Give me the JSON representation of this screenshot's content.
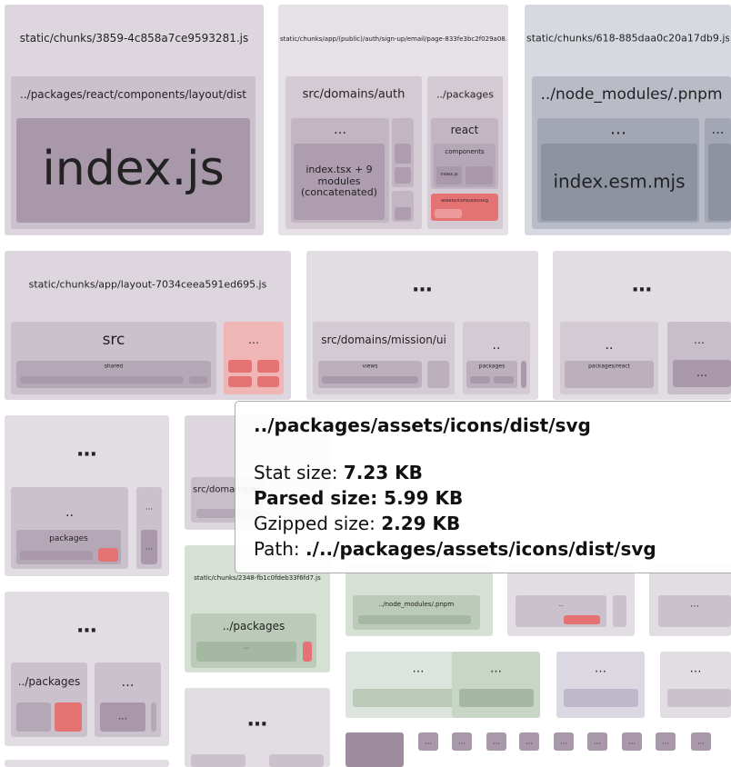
{
  "treemap": {
    "labels": [
      "static/chunks/3859-4c858a7ce9593281.js",
      "../packages/react/components/layout/dist",
      "index.js",
      "static/chunks/app/(public)/auth/sign-up/email/page-833fe3bc2f029a08.js",
      "src/domains/auth",
      "…",
      "index.tsx + 9 modules (concatenated)",
      "../packages",
      "react",
      "components",
      "index.js",
      "assets/icons/dist/svg",
      "static/chunks/618-885daa0c20a17db9.js",
      "../node_modules/.pnpm",
      "…",
      "index.esm.mjs",
      "…",
      "static/chunks/app/layout-7034ceea591ed695.js",
      "src",
      "shared",
      "…",
      "…",
      "src/domains/mission/ui",
      "views",
      "..",
      "packages",
      "…",
      "..",
      "packages/react",
      "…",
      "…",
      "…",
      "..",
      "packages",
      "…",
      "…",
      "src/domains/academy",
      "static/chunks/2348-fb1c0fdeb33f6fd7.js",
      "../packages",
      "…",
      "…",
      "../packages",
      "…",
      "…",
      "…",
      "../node_modules/.pnpm",
      "..",
      "…",
      "…",
      "…",
      "…",
      "…",
      "…",
      "…",
      "…",
      "…",
      "…",
      "…",
      "…",
      "…",
      "…"
    ]
  },
  "tooltip": {
    "title": "../packages/assets/icons/dist/svg",
    "stat_size": {
      "label": "Stat size:",
      "value": "7.23 KB"
    },
    "parsed_size": {
      "label": "Parsed size:",
      "value": "5.99 KB"
    },
    "gzipped_size": {
      "label": "Gzipped size:",
      "value": "2.29 KB"
    },
    "path": {
      "label": "Path:",
      "value": "./../packages/assets/icons/dist/svg"
    }
  }
}
